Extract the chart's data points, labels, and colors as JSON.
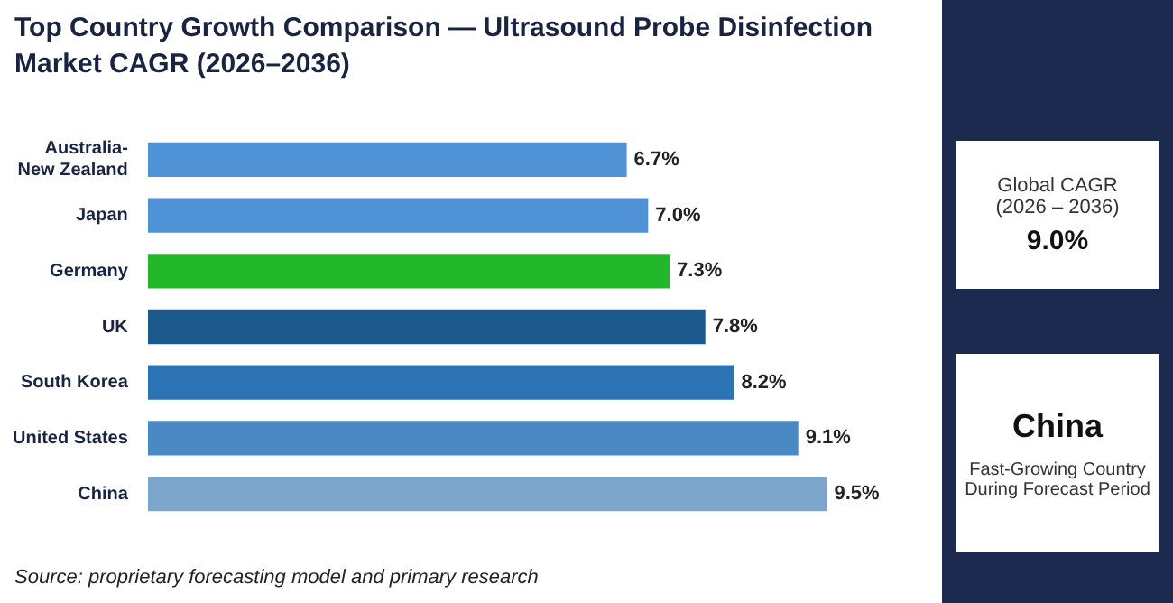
{
  "chart_data": [
    {
      "type": "bar",
      "orientation": "horizontal",
      "title": "Top Country Growth Comparison — Ultrasound Probe Disinfection Market CAGR (2026–2036)",
      "categories": [
        "Australia-New Zealand",
        "Japan",
        "Germany",
        "UK",
        "South Korea",
        "United States",
        "China"
      ],
      "values": [
        6.7,
        7.0,
        7.3,
        7.8,
        8.2,
        9.1,
        9.5
      ],
      "colors": [
        "#4f93d6",
        "#4f93d6",
        "#22b82a",
        "#1c5a8e",
        "#2c73b4",
        "#4a89c4",
        "#7ca6cc"
      ],
      "value_labels": [
        "6.7%",
        "7.0%",
        "7.3%",
        "7.8%",
        "8.2%",
        "9.1%",
        "9.5%"
      ],
      "legend": false,
      "annotations": [
        "Source: proprietary forecasting model and primary research"
      ]
    },
    {
      "type": "other",
      "annotations": [
        "Global CAGR\n(2026 – 2036)",
        "9.0%",
        "China",
        "Fast-Growing Country\nDuring Forecast Period"
      ]
    }
  ]
}
